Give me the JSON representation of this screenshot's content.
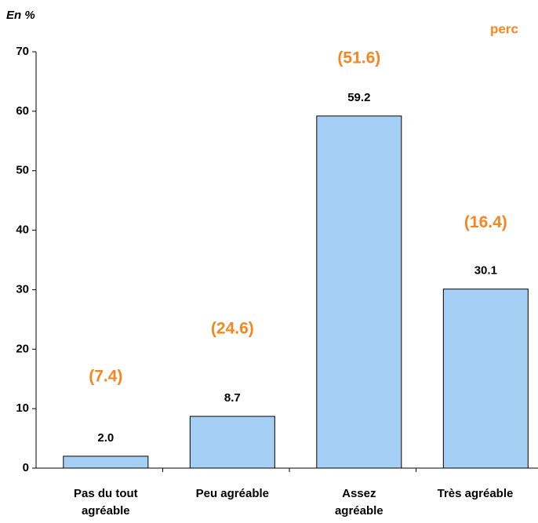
{
  "chart_data": {
    "type": "bar",
    "unit_label": "En %",
    "corner_note": "perc",
    "categories": [
      "Pas du tout\nagréable",
      "Peu agréable",
      "Assez\nagréable",
      "Très agréable"
    ],
    "values": [
      2.0,
      8.7,
      59.2,
      30.1
    ],
    "value_labels": [
      "2.0",
      "8.7",
      "59.2",
      "30.1"
    ],
    "annotations": [
      "(7.4)",
      "(24.6)",
      "(51.6)",
      "(16.4)"
    ],
    "color": "#a6cff5",
    "annotation_color": "#f7861f",
    "ylim": [
      0,
      70
    ],
    "yticks": [
      0,
      10,
      20,
      30,
      40,
      50,
      60,
      70
    ],
    "grid": false
  }
}
